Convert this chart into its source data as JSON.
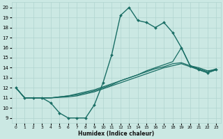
{
  "xlabel": "Humidex (Indice chaleur)",
  "xlim": [
    -0.5,
    23.5
  ],
  "ylim": [
    8.5,
    20.5
  ],
  "xticks": [
    0,
    1,
    2,
    3,
    4,
    5,
    6,
    7,
    8,
    9,
    10,
    11,
    12,
    13,
    14,
    15,
    16,
    17,
    18,
    19,
    20,
    21,
    22,
    23
  ],
  "yticks": [
    9,
    10,
    11,
    12,
    13,
    14,
    15,
    16,
    17,
    18,
    19,
    20
  ],
  "bg_color": "#cbe8e3",
  "grid_color": "#b0d4cf",
  "line_color": "#1a6e65",
  "lines": [
    {
      "x": [
        0,
        1,
        2,
        3,
        4,
        5,
        6,
        7,
        8,
        9,
        10,
        11,
        12,
        13,
        14,
        15,
        16,
        17,
        18,
        19,
        20,
        21,
        22,
        23
      ],
      "y": [
        12,
        11,
        11,
        11,
        10.5,
        9.5,
        9,
        9,
        9,
        10.3,
        12.5,
        15.3,
        19.2,
        20,
        18.7,
        18.5,
        18,
        18.5,
        17.5,
        16,
        14.2,
        13.8,
        13.5,
        13.8
      ],
      "marker": "D",
      "markersize": 2.0,
      "linewidth": 1.0
    },
    {
      "x": [
        0,
        1,
        2,
        3,
        4,
        5,
        6,
        7,
        8,
        9,
        10,
        11,
        12,
        13,
        14,
        15,
        16,
        17,
        18,
        19,
        20,
        21,
        22,
        23
      ],
      "y": [
        12,
        11,
        11,
        11,
        11,
        11.1,
        11.2,
        11.3,
        11.5,
        11.7,
        12.0,
        12.3,
        12.7,
        13.0,
        13.3,
        13.7,
        14.0,
        14.3,
        14.6,
        16.0,
        14.2,
        13.9,
        13.6,
        13.9
      ],
      "marker": null,
      "linewidth": 0.9
    },
    {
      "x": [
        0,
        1,
        2,
        3,
        4,
        5,
        6,
        7,
        8,
        9,
        10,
        11,
        12,
        13,
        14,
        15,
        16,
        17,
        18,
        19,
        20,
        21,
        22,
        23
      ],
      "y": [
        12,
        11,
        11,
        11,
        11,
        11.1,
        11.2,
        11.4,
        11.6,
        11.8,
        12.1,
        12.4,
        12.7,
        13.0,
        13.3,
        13.6,
        13.9,
        14.1,
        14.4,
        14.5,
        14.2,
        14.0,
        13.7,
        13.8
      ],
      "marker": null,
      "linewidth": 0.9
    },
    {
      "x": [
        0,
        1,
        2,
        3,
        4,
        5,
        6,
        7,
        8,
        9,
        10,
        11,
        12,
        13,
        14,
        15,
        16,
        17,
        18,
        19,
        20,
        21,
        22,
        23
      ],
      "y": [
        12,
        11,
        11,
        11,
        11,
        11.05,
        11.1,
        11.2,
        11.4,
        11.6,
        11.9,
        12.2,
        12.5,
        12.8,
        13.1,
        13.4,
        13.7,
        14.0,
        14.2,
        14.4,
        14.1,
        13.8,
        13.5,
        13.8
      ],
      "marker": null,
      "linewidth": 0.9
    }
  ]
}
